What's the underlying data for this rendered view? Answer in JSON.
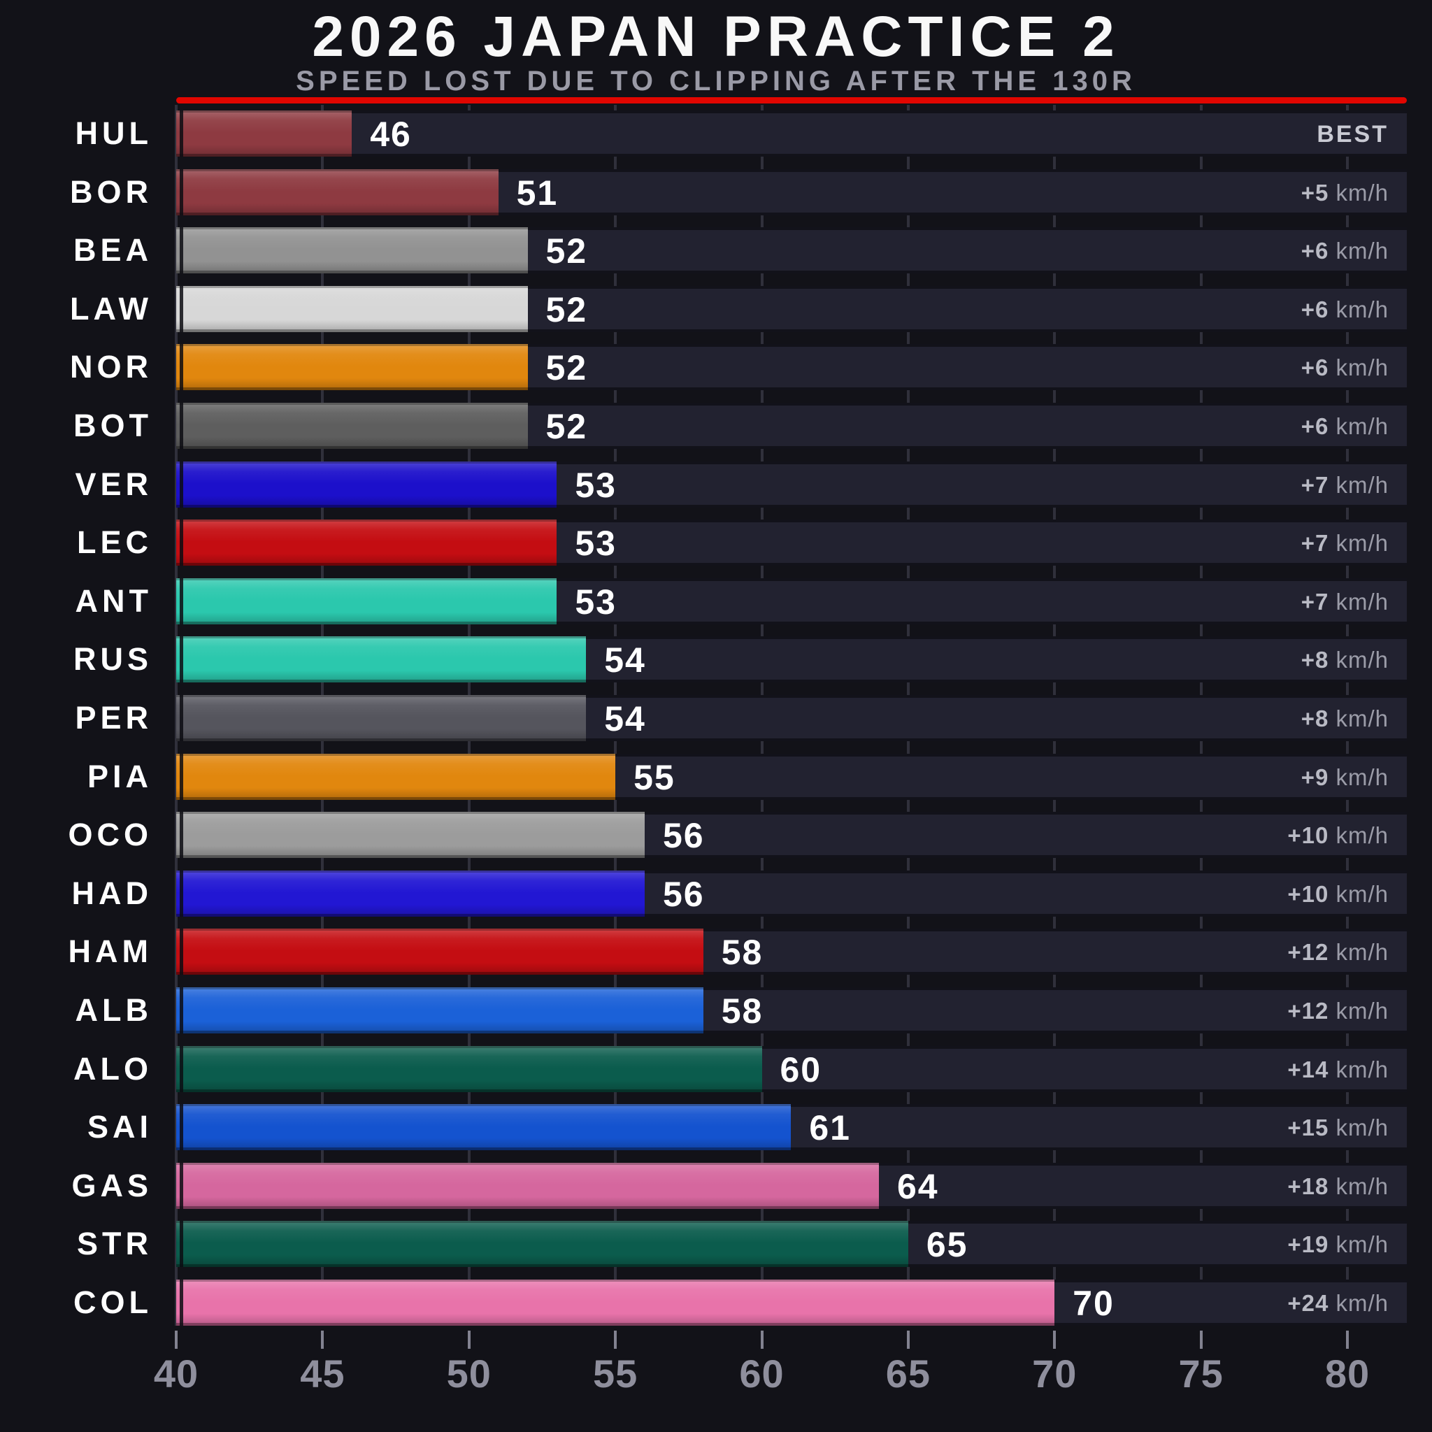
{
  "title": "2026 JAPAN PRACTICE 2",
  "subtitle": "SPEED LOST DUE TO CLIPPING AFTER THE 130R",
  "colors": {
    "background": "#121218",
    "row_track": "#222230",
    "accent_red": "#E10600",
    "title_white": "#F8F8F8",
    "subtitle_gray": "#9A9AA6",
    "axis_gray": "#8F8F9D",
    "value_white": "#FFFFFF",
    "delta_gray": "#9B9CA8"
  },
  "chart_data": {
    "type": "bar",
    "orientation": "horizontal",
    "title": "2026 JAPAN PRACTICE 2",
    "subtitle": "SPEED LOST DUE TO CLIPPING AFTER THE 130R",
    "xlabel": "",
    "ylabel": "",
    "xlim": [
      40,
      82
    ],
    "x_ticks": [
      40,
      45,
      50,
      55,
      60,
      65,
      70,
      75,
      80
    ],
    "grid": "vertical-ticks-in-row-gaps",
    "legend": "none",
    "categories": [
      "HUL",
      "BOR",
      "BEA",
      "LAW",
      "NOR",
      "BOT",
      "VER",
      "LEC",
      "ANT",
      "RUS",
      "PER",
      "PIA",
      "OCO",
      "HAD",
      "HAM",
      "ALB",
      "ALO",
      "SAI",
      "GAS",
      "STR",
      "COL"
    ],
    "values": [
      46,
      51,
      52,
      52,
      52,
      52,
      53,
      53,
      53,
      54,
      54,
      55,
      56,
      56,
      58,
      58,
      60,
      61,
      64,
      65,
      70
    ],
    "delta_labels": [
      "BEST",
      "+5 km/h",
      "+6 km/h",
      "+6 km/h",
      "+6 km/h",
      "+6 km/h",
      "+7 km/h",
      "+7 km/h",
      "+7 km/h",
      "+8 km/h",
      "+8 km/h",
      "+9 km/h",
      "+10 km/h",
      "+10 km/h",
      "+12 km/h",
      "+12 km/h",
      "+14 km/h",
      "+15 km/h",
      "+18 km/h",
      "+19 km/h",
      "+24 km/h"
    ],
    "bar_colors": [
      "#8E3A41",
      "#8E3A41",
      "#929292",
      "#D7D7D7",
      "#E1870E",
      "#5E5E5E",
      "#1C10CB",
      "#C40D12",
      "#2BC8AD",
      "#2BC8AD",
      "#55555D",
      "#E1870E",
      "#9C9C9C",
      "#2217D3",
      "#C40D12",
      "#1B61D8",
      "#0B5C4D",
      "#1453CF",
      "#D5679E",
      "#0B5C4D",
      "#E873AA"
    ]
  }
}
